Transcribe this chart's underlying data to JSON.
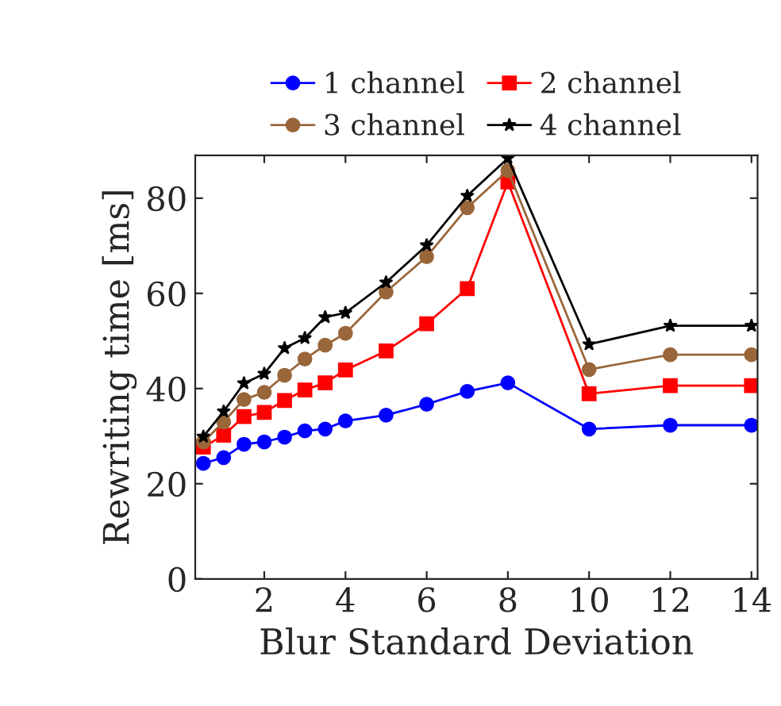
{
  "chart_data": {
    "type": "line",
    "xlabel": "Blur Standard Deviation",
    "ylabel": "Rewriting time [ms]",
    "x": [
      0.5,
      1,
      1.5,
      2,
      2.5,
      3,
      3.5,
      4,
      5,
      6,
      7,
      8,
      10,
      12,
      14
    ],
    "series": [
      {
        "name": "1 channel",
        "color": "#0000ff",
        "marker": "circle",
        "values": [
          24.3,
          25.5,
          28.3,
          28.8,
          29.8,
          31.1,
          31.5,
          33.2,
          34.4,
          36.7,
          39.4,
          41.2,
          31.5,
          32.3,
          32.3
        ]
      },
      {
        "name": "2 channel",
        "color": "#ff0000",
        "marker": "square",
        "values": [
          27.7,
          30.2,
          34.1,
          35.0,
          37.5,
          39.7,
          41.2,
          43.9,
          47.9,
          53.6,
          61.0,
          83.4,
          38.9,
          40.6,
          40.6
        ]
      },
      {
        "name": "3 channel",
        "color": "#99663a",
        "marker": "circle",
        "values": [
          28.8,
          33.0,
          37.7,
          39.2,
          42.8,
          46.2,
          49.1,
          51.6,
          60.3,
          67.7,
          78.0,
          85.8,
          44.0,
          47.1,
          47.1
        ]
      },
      {
        "name": "4 channel",
        "color": "#000000",
        "marker": "star",
        "values": [
          29.9,
          35.2,
          41.1,
          43.1,
          48.5,
          50.6,
          55.0,
          55.9,
          62.3,
          70.1,
          80.5,
          88.4,
          49.3,
          53.2,
          53.2
        ]
      }
    ],
    "xlim": [
      0.3,
      14.15
    ],
    "ylim": [
      0,
      89
    ],
    "xticks": [
      2,
      4,
      6,
      8,
      10,
      12,
      14
    ],
    "yticks": [
      0,
      20,
      40,
      60,
      80
    ],
    "grid": false,
    "legend": "top",
    "line_style": "solid"
  }
}
